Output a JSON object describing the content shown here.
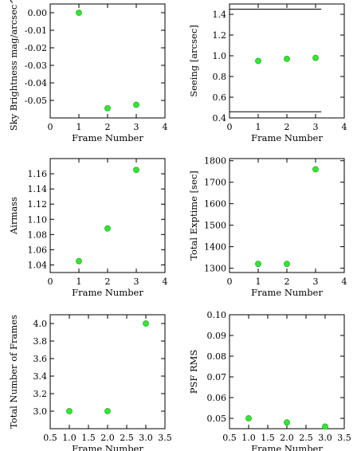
{
  "chart_data": [
    {
      "type": "scatter",
      "xlabel": "Frame Number",
      "ylabel": "Sky Brightness mag/arcsec^2",
      "xlim": [
        0,
        4
      ],
      "ylim": [
        -0.06,
        0.005
      ],
      "xticks": [
        0,
        1,
        2,
        3,
        4
      ],
      "xtick_labels": [
        "0",
        "1",
        "2",
        "3",
        "4"
      ],
      "yticks": [
        0.0,
        -0.01,
        -0.02,
        -0.03,
        -0.04,
        -0.05
      ],
      "ytick_labels": [
        "0.00",
        "-0.01",
        "-0.02",
        "-0.03",
        "-0.04",
        "-0.05"
      ],
      "x": [
        1,
        2,
        3
      ],
      "y": [
        0.0,
        -0.0545,
        -0.0525
      ],
      "lines": [],
      "grid": false
    },
    {
      "type": "scatter",
      "xlabel": "Frame Number",
      "ylabel": "Seeing [arcsec]",
      "xlim": [
        0,
        4
      ],
      "ylim": [
        0.4,
        1.5
      ],
      "xticks": [
        0,
        1,
        2,
        3,
        4
      ],
      "xtick_labels": [
        "0",
        "1",
        "2",
        "3",
        "4"
      ],
      "yticks": [
        0.4,
        0.6,
        0.8,
        1.0,
        1.2,
        1.4
      ],
      "ytick_labels": [
        "0.4",
        "0.6",
        "0.8",
        "1.0",
        "1.2",
        "1.4"
      ],
      "x": [
        1,
        2,
        3
      ],
      "y": [
        0.95,
        0.97,
        0.98
      ],
      "lines": [
        {
          "x": [
            0,
            3.2
          ],
          "y": [
            1.45,
            1.45
          ]
        },
        {
          "x": [
            0,
            3.2
          ],
          "y": [
            0.46,
            0.46
          ]
        }
      ],
      "grid": false
    },
    {
      "type": "scatter",
      "xlabel": "Frame Number",
      "ylabel": "Airmass",
      "xlim": [
        0,
        4
      ],
      "ylim": [
        1.03,
        1.18
      ],
      "xticks": [
        0,
        1,
        2,
        3,
        4
      ],
      "xtick_labels": [
        "0",
        "1",
        "2",
        "3",
        "4"
      ],
      "yticks": [
        1.04,
        1.06,
        1.08,
        1.1,
        1.12,
        1.14,
        1.16
      ],
      "ytick_labels": [
        "1.04",
        "1.06",
        "1.08",
        "1.10",
        "1.12",
        "1.14",
        "1.16"
      ],
      "x": [
        1,
        2,
        3
      ],
      "y": [
        1.045,
        1.088,
        1.165
      ],
      "lines": [],
      "grid": false
    },
    {
      "type": "scatter",
      "xlabel": "Frame Number",
      "ylabel": "Total Exptime [sec]",
      "xlim": [
        0,
        4
      ],
      "ylim": [
        1280,
        1810
      ],
      "xticks": [
        0,
        1,
        2,
        3,
        4
      ],
      "xtick_labels": [
        "0",
        "1",
        "2",
        "3",
        "4"
      ],
      "yticks": [
        1300,
        1400,
        1500,
        1600,
        1700,
        1800
      ],
      "ytick_labels": [
        "1300",
        "1400",
        "1500",
        "1600",
        "1700",
        "1800"
      ],
      "x": [
        1,
        2,
        3
      ],
      "y": [
        1320,
        1320,
        1760
      ],
      "lines": [],
      "grid": false
    },
    {
      "type": "scatter",
      "xlabel": "Frame Number",
      "ylabel": "Total Number of Frames",
      "xlim": [
        0.5,
        3.5
      ],
      "ylim": [
        2.8,
        4.1
      ],
      "xticks": [
        0.5,
        1.0,
        1.5,
        2.0,
        2.5,
        3.0,
        3.5
      ],
      "xtick_labels": [
        "0.5",
        "1.0",
        "1.5",
        "2.0",
        "2.5",
        "3.0",
        "3.5"
      ],
      "yticks": [
        3.0,
        3.2,
        3.4,
        3.6,
        3.8,
        4.0
      ],
      "ytick_labels": [
        "3.0",
        "3.2",
        "3.4",
        "3.6",
        "3.8",
        "4.0"
      ],
      "x": [
        1,
        2,
        3
      ],
      "y": [
        3.0,
        3.0,
        4.0
      ],
      "lines": [],
      "grid": false
    },
    {
      "type": "scatter",
      "xlabel": "Frame Number",
      "ylabel": "PSF RMS",
      "xlim": [
        0.5,
        3.5
      ],
      "ylim": [
        0.045,
        0.1
      ],
      "xticks": [
        0.5,
        1.0,
        1.5,
        2.0,
        2.5,
        3.0,
        3.5
      ],
      "xtick_labels": [
        "0.5",
        "1.0",
        "1.5",
        "2.0",
        "2.5",
        "3.0",
        "3.5"
      ],
      "yticks": [
        0.05,
        0.06,
        0.07,
        0.08,
        0.09,
        0.1
      ],
      "ytick_labels": [
        "0.05",
        "0.06",
        "0.07",
        "0.08",
        "0.09",
        "0.10"
      ],
      "x": [
        1,
        2,
        3
      ],
      "y": [
        0.05,
        0.048,
        0.046
      ],
      "lines": [],
      "grid": false
    }
  ],
  "colors": {
    "marker_fill": "#33e633",
    "marker_edge": "#1aa01a",
    "axis": "#000000"
  }
}
